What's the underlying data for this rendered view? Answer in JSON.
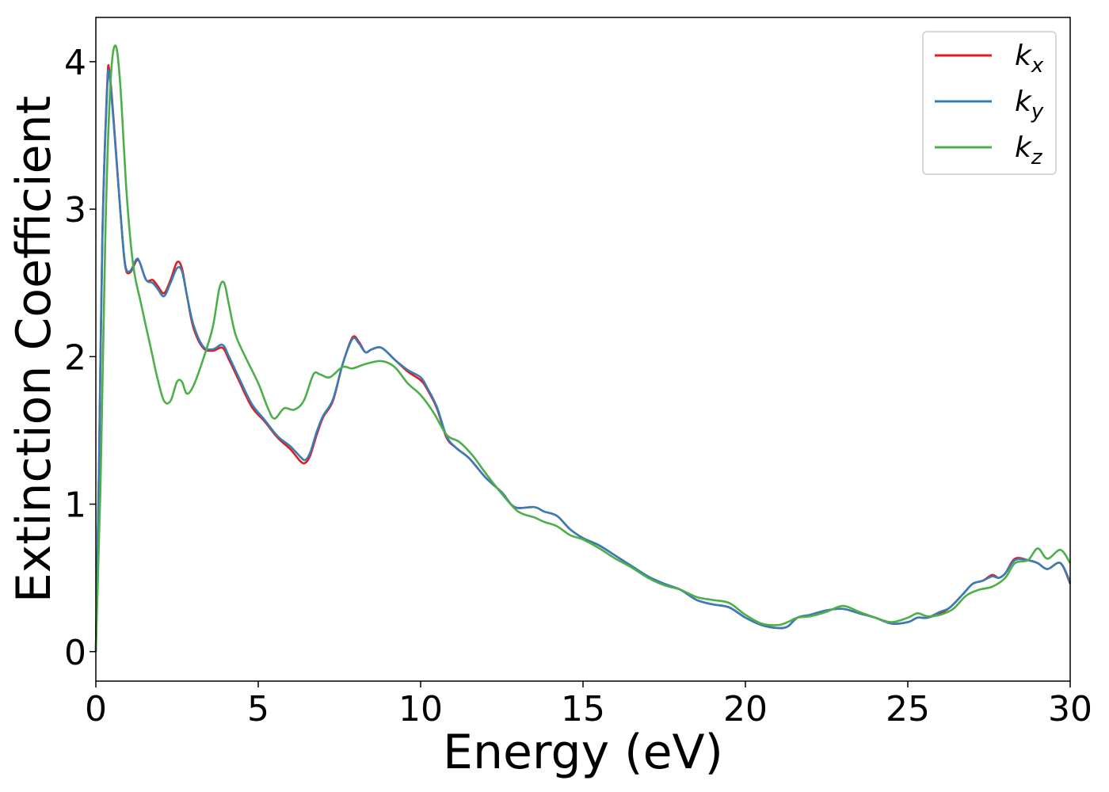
{
  "chart_data": {
    "type": "line",
    "title": "",
    "xlabel": "Energy (eV)",
    "ylabel": "Extinction Coefficient",
    "xlim": [
      0,
      30
    ],
    "ylim": [
      -0.2,
      4.3
    ],
    "xticks": [
      0,
      5,
      10,
      15,
      20,
      25,
      30
    ],
    "xtick_labels": [
      "0",
      "5",
      "10",
      "15",
      "20",
      "25",
      "30"
    ],
    "yticks": [
      0,
      1,
      2,
      3,
      4
    ],
    "ytick_labels": [
      "0",
      "1",
      "2",
      "3",
      "4"
    ],
    "grid": false,
    "legend_position": "top-right",
    "series": [
      {
        "name": "k_x",
        "label_base": "k",
        "label_sub": "x",
        "color": "#e41a1c",
        "points": [
          [
            0,
            0.0
          ],
          [
            0.1,
            1.3
          ],
          [
            0.2,
            2.8
          ],
          [
            0.35,
            3.85
          ],
          [
            0.42,
            3.93
          ],
          [
            0.55,
            3.6
          ],
          [
            0.75,
            3.0
          ],
          [
            0.9,
            2.62
          ],
          [
            1.05,
            2.57
          ],
          [
            1.25,
            2.65
          ],
          [
            1.35,
            2.64
          ],
          [
            1.55,
            2.52
          ],
          [
            1.75,
            2.52
          ],
          [
            1.9,
            2.48
          ],
          [
            2.1,
            2.43
          ],
          [
            2.3,
            2.52
          ],
          [
            2.5,
            2.64
          ],
          [
            2.65,
            2.6
          ],
          [
            2.8,
            2.42
          ],
          [
            3.0,
            2.2
          ],
          [
            3.3,
            2.06
          ],
          [
            3.6,
            2.04
          ],
          [
            3.9,
            2.06
          ],
          [
            4.1,
            1.98
          ],
          [
            4.4,
            1.84
          ],
          [
            4.8,
            1.66
          ],
          [
            5.2,
            1.56
          ],
          [
            5.6,
            1.45
          ],
          [
            6.0,
            1.37
          ],
          [
            6.3,
            1.29
          ],
          [
            6.45,
            1.28
          ],
          [
            6.6,
            1.33
          ],
          [
            6.8,
            1.47
          ],
          [
            7.0,
            1.59
          ],
          [
            7.3,
            1.7
          ],
          [
            7.6,
            1.95
          ],
          [
            7.9,
            2.13
          ],
          [
            8.1,
            2.1
          ],
          [
            8.3,
            2.03
          ],
          [
            8.5,
            2.05
          ],
          [
            8.8,
            2.06
          ],
          [
            9.2,
            1.98
          ],
          [
            9.6,
            1.9
          ],
          [
            10.0,
            1.84
          ],
          [
            10.2,
            1.78
          ],
          [
            10.5,
            1.65
          ],
          [
            10.8,
            1.45
          ],
          [
            11.1,
            1.38
          ],
          [
            11.5,
            1.31
          ],
          [
            12.0,
            1.18
          ],
          [
            12.5,
            1.08
          ],
          [
            12.9,
            0.98
          ],
          [
            13.5,
            0.98
          ],
          [
            13.8,
            0.95
          ],
          [
            14.2,
            0.92
          ],
          [
            14.6,
            0.83
          ],
          [
            15.0,
            0.77
          ],
          [
            15.5,
            0.72
          ],
          [
            16.0,
            0.65
          ],
          [
            16.5,
            0.58
          ],
          [
            17.0,
            0.51
          ],
          [
            17.5,
            0.46
          ],
          [
            18.0,
            0.42
          ],
          [
            18.5,
            0.35
          ],
          [
            19.0,
            0.32
          ],
          [
            19.5,
            0.3
          ],
          [
            20.0,
            0.23
          ],
          [
            20.5,
            0.18
          ],
          [
            21.0,
            0.16
          ],
          [
            21.3,
            0.17
          ],
          [
            21.6,
            0.23
          ],
          [
            22.0,
            0.25
          ],
          [
            22.5,
            0.28
          ],
          [
            23.0,
            0.29
          ],
          [
            23.5,
            0.26
          ],
          [
            24.0,
            0.23
          ],
          [
            24.5,
            0.19
          ],
          [
            25.0,
            0.2
          ],
          [
            25.3,
            0.23
          ],
          [
            25.6,
            0.23
          ],
          [
            26.0,
            0.26
          ],
          [
            26.3,
            0.3
          ],
          [
            26.7,
            0.39
          ],
          [
            27.0,
            0.46
          ],
          [
            27.3,
            0.48
          ],
          [
            27.6,
            0.52
          ],
          [
            27.8,
            0.5
          ],
          [
            28.0,
            0.53
          ],
          [
            28.3,
            0.63
          ],
          [
            28.7,
            0.62
          ],
          [
            29.0,
            0.6
          ],
          [
            29.3,
            0.56
          ],
          [
            29.7,
            0.6
          ],
          [
            30.0,
            0.46
          ]
        ]
      },
      {
        "name": "k_y",
        "label_base": "k",
        "label_sub": "y",
        "color": "#377eb8",
        "points": [
          [
            0,
            0.0
          ],
          [
            0.1,
            1.3
          ],
          [
            0.2,
            2.8
          ],
          [
            0.35,
            3.82
          ],
          [
            0.42,
            3.9
          ],
          [
            0.55,
            3.58
          ],
          [
            0.75,
            3.0
          ],
          [
            0.9,
            2.63
          ],
          [
            1.05,
            2.58
          ],
          [
            1.25,
            2.66
          ],
          [
            1.35,
            2.64
          ],
          [
            1.55,
            2.52
          ],
          [
            1.75,
            2.5
          ],
          [
            1.9,
            2.46
          ],
          [
            2.1,
            2.41
          ],
          [
            2.3,
            2.5
          ],
          [
            2.5,
            2.6
          ],
          [
            2.65,
            2.58
          ],
          [
            2.8,
            2.42
          ],
          [
            3.0,
            2.22
          ],
          [
            3.3,
            2.07
          ],
          [
            3.6,
            2.05
          ],
          [
            3.9,
            2.08
          ],
          [
            4.1,
            2.0
          ],
          [
            4.4,
            1.86
          ],
          [
            4.8,
            1.68
          ],
          [
            5.2,
            1.57
          ],
          [
            5.6,
            1.46
          ],
          [
            6.0,
            1.39
          ],
          [
            6.3,
            1.32
          ],
          [
            6.45,
            1.3
          ],
          [
            6.6,
            1.35
          ],
          [
            6.8,
            1.49
          ],
          [
            7.0,
            1.6
          ],
          [
            7.3,
            1.71
          ],
          [
            7.6,
            1.95
          ],
          [
            7.9,
            2.12
          ],
          [
            8.1,
            2.09
          ],
          [
            8.3,
            2.03
          ],
          [
            8.5,
            2.05
          ],
          [
            8.8,
            2.06
          ],
          [
            9.2,
            1.98
          ],
          [
            9.6,
            1.91
          ],
          [
            10.0,
            1.86
          ],
          [
            10.2,
            1.79
          ],
          [
            10.5,
            1.66
          ],
          [
            10.8,
            1.46
          ],
          [
            11.1,
            1.38
          ],
          [
            11.5,
            1.31
          ],
          [
            12.0,
            1.18
          ],
          [
            12.5,
            1.08
          ],
          [
            12.9,
            0.98
          ],
          [
            13.5,
            0.98
          ],
          [
            13.8,
            0.95
          ],
          [
            14.2,
            0.92
          ],
          [
            14.6,
            0.83
          ],
          [
            15.0,
            0.77
          ],
          [
            15.5,
            0.72
          ],
          [
            16.0,
            0.65
          ],
          [
            16.5,
            0.58
          ],
          [
            17.0,
            0.51
          ],
          [
            17.5,
            0.46
          ],
          [
            18.0,
            0.42
          ],
          [
            18.5,
            0.35
          ],
          [
            19.0,
            0.32
          ],
          [
            19.5,
            0.3
          ],
          [
            20.0,
            0.23
          ],
          [
            20.5,
            0.18
          ],
          [
            21.0,
            0.16
          ],
          [
            21.3,
            0.17
          ],
          [
            21.6,
            0.23
          ],
          [
            22.0,
            0.25
          ],
          [
            22.5,
            0.28
          ],
          [
            23.0,
            0.29
          ],
          [
            23.5,
            0.26
          ],
          [
            24.0,
            0.23
          ],
          [
            24.5,
            0.19
          ],
          [
            25.0,
            0.2
          ],
          [
            25.3,
            0.23
          ],
          [
            25.6,
            0.23
          ],
          [
            26.0,
            0.27
          ],
          [
            26.3,
            0.3
          ],
          [
            26.7,
            0.39
          ],
          [
            27.0,
            0.46
          ],
          [
            27.3,
            0.48
          ],
          [
            27.6,
            0.51
          ],
          [
            27.8,
            0.5
          ],
          [
            28.0,
            0.53
          ],
          [
            28.3,
            0.62
          ],
          [
            28.7,
            0.62
          ],
          [
            29.0,
            0.6
          ],
          [
            29.3,
            0.56
          ],
          [
            29.7,
            0.6
          ],
          [
            30.0,
            0.47
          ]
        ]
      },
      {
        "name": "k_z",
        "label_base": "k",
        "label_sub": "z",
        "color": "#4daf4a",
        "points": [
          [
            0,
            0.0
          ],
          [
            0.15,
            1.2
          ],
          [
            0.3,
            2.9
          ],
          [
            0.45,
            3.85
          ],
          [
            0.6,
            4.11
          ],
          [
            0.75,
            3.85
          ],
          [
            0.95,
            3.1
          ],
          [
            1.15,
            2.62
          ],
          [
            1.4,
            2.35
          ],
          [
            1.7,
            2.05
          ],
          [
            1.9,
            1.85
          ],
          [
            2.1,
            1.7
          ],
          [
            2.3,
            1.7
          ],
          [
            2.5,
            1.83
          ],
          [
            2.65,
            1.83
          ],
          [
            2.8,
            1.75
          ],
          [
            3.0,
            1.8
          ],
          [
            3.3,
            1.98
          ],
          [
            3.6,
            2.2
          ],
          [
            3.8,
            2.46
          ],
          [
            3.95,
            2.5
          ],
          [
            4.1,
            2.35
          ],
          [
            4.3,
            2.15
          ],
          [
            4.6,
            2.0
          ],
          [
            5.0,
            1.82
          ],
          [
            5.3,
            1.65
          ],
          [
            5.5,
            1.58
          ],
          [
            5.8,
            1.65
          ],
          [
            6.1,
            1.64
          ],
          [
            6.4,
            1.7
          ],
          [
            6.7,
            1.88
          ],
          [
            6.9,
            1.88
          ],
          [
            7.2,
            1.86
          ],
          [
            7.6,
            1.93
          ],
          [
            7.9,
            1.92
          ],
          [
            8.3,
            1.95
          ],
          [
            8.8,
            1.97
          ],
          [
            9.2,
            1.93
          ],
          [
            9.6,
            1.82
          ],
          [
            10.0,
            1.74
          ],
          [
            10.4,
            1.62
          ],
          [
            10.8,
            1.47
          ],
          [
            11.2,
            1.42
          ],
          [
            11.6,
            1.33
          ],
          [
            12.0,
            1.21
          ],
          [
            12.5,
            1.07
          ],
          [
            13.0,
            0.95
          ],
          [
            13.5,
            0.91
          ],
          [
            13.8,
            0.88
          ],
          [
            14.2,
            0.85
          ],
          [
            14.6,
            0.79
          ],
          [
            15.0,
            0.76
          ],
          [
            15.5,
            0.7
          ],
          [
            16.0,
            0.63
          ],
          [
            16.5,
            0.57
          ],
          [
            17.0,
            0.5
          ],
          [
            17.5,
            0.45
          ],
          [
            18.0,
            0.42
          ],
          [
            18.5,
            0.37
          ],
          [
            19.0,
            0.35
          ],
          [
            19.5,
            0.33
          ],
          [
            20.0,
            0.25
          ],
          [
            20.5,
            0.19
          ],
          [
            21.0,
            0.18
          ],
          [
            21.3,
            0.2
          ],
          [
            21.6,
            0.23
          ],
          [
            22.0,
            0.24
          ],
          [
            22.5,
            0.27
          ],
          [
            23.0,
            0.31
          ],
          [
            23.5,
            0.27
          ],
          [
            24.0,
            0.23
          ],
          [
            24.5,
            0.2
          ],
          [
            25.0,
            0.23
          ],
          [
            25.3,
            0.26
          ],
          [
            25.6,
            0.24
          ],
          [
            26.0,
            0.25
          ],
          [
            26.4,
            0.29
          ],
          [
            26.8,
            0.38
          ],
          [
            27.2,
            0.42
          ],
          [
            27.6,
            0.44
          ],
          [
            28.0,
            0.5
          ],
          [
            28.3,
            0.6
          ],
          [
            28.7,
            0.62
          ],
          [
            29.0,
            0.7
          ],
          [
            29.3,
            0.63
          ],
          [
            29.7,
            0.69
          ],
          [
            30.0,
            0.6
          ]
        ]
      }
    ]
  }
}
